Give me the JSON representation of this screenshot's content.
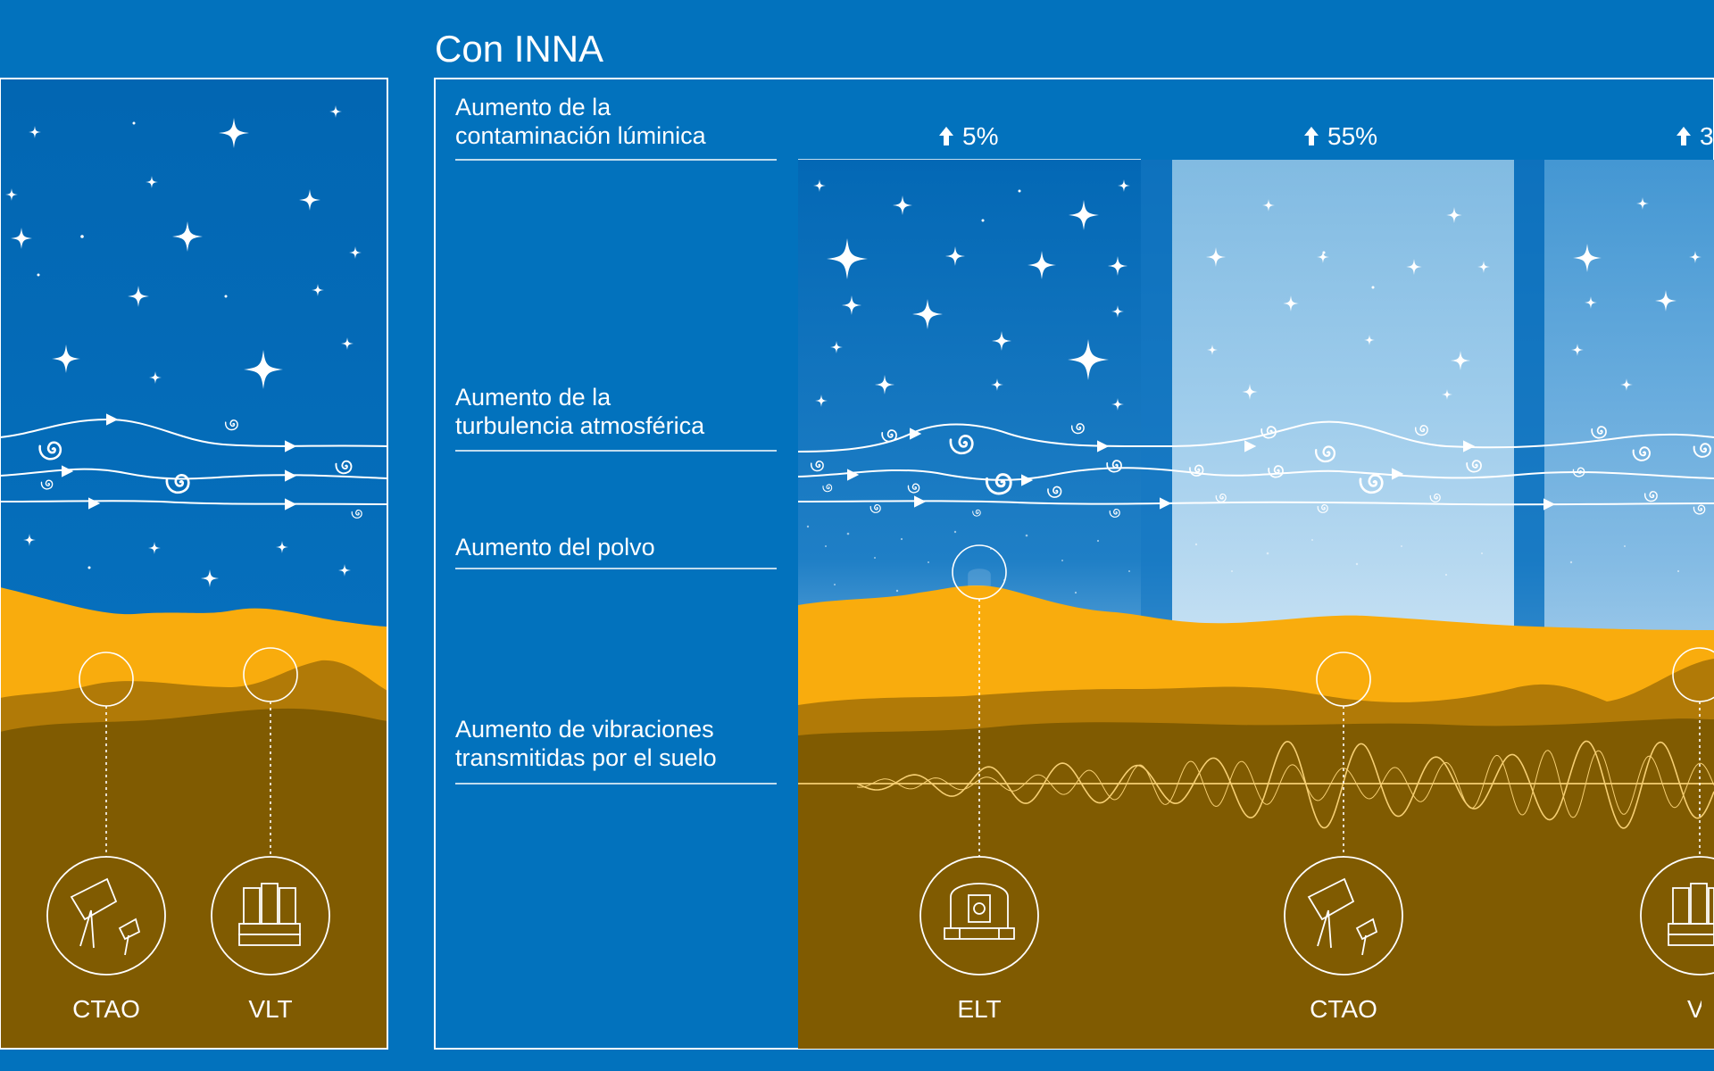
{
  "section_title": "Con INNA",
  "rows": [
    {
      "id": "light",
      "line1": "Aumento de la",
      "line2": "contaminación lúminica"
    },
    {
      "id": "turbulence",
      "line1": "Aumento de la",
      "line2": "turbulencia atmosférica"
    },
    {
      "id": "dust",
      "line1": "Aumento del polvo",
      "line2": ""
    },
    {
      "id": "vibrations",
      "line1": "Aumento de vibraciones",
      "line2": "transmitidas por el suelo"
    }
  ],
  "increases": [
    {
      "site": "ELT",
      "value": "5%"
    },
    {
      "site": "CTAO",
      "value": "55%"
    },
    {
      "site": "VLT",
      "value": "3"
    }
  ],
  "facilities_left": [
    "CTAO",
    "VLT"
  ],
  "facilities_right": [
    "ELT",
    "CTAO",
    "VL"
  ],
  "colors": {
    "background": "#0272bd",
    "night_sky": "#0267b3",
    "hills_light": "#f9ac0d",
    "hills_mid": "#b17a07",
    "ground": "#805b01",
    "wave": "#f6cf73",
    "white": "#ffffff"
  },
  "icons": [
    "star-icon",
    "swirl-icon",
    "telescope-dome-icon",
    "antenna-icon",
    "vlt-building-icon",
    "arrow-up-icon"
  ]
}
